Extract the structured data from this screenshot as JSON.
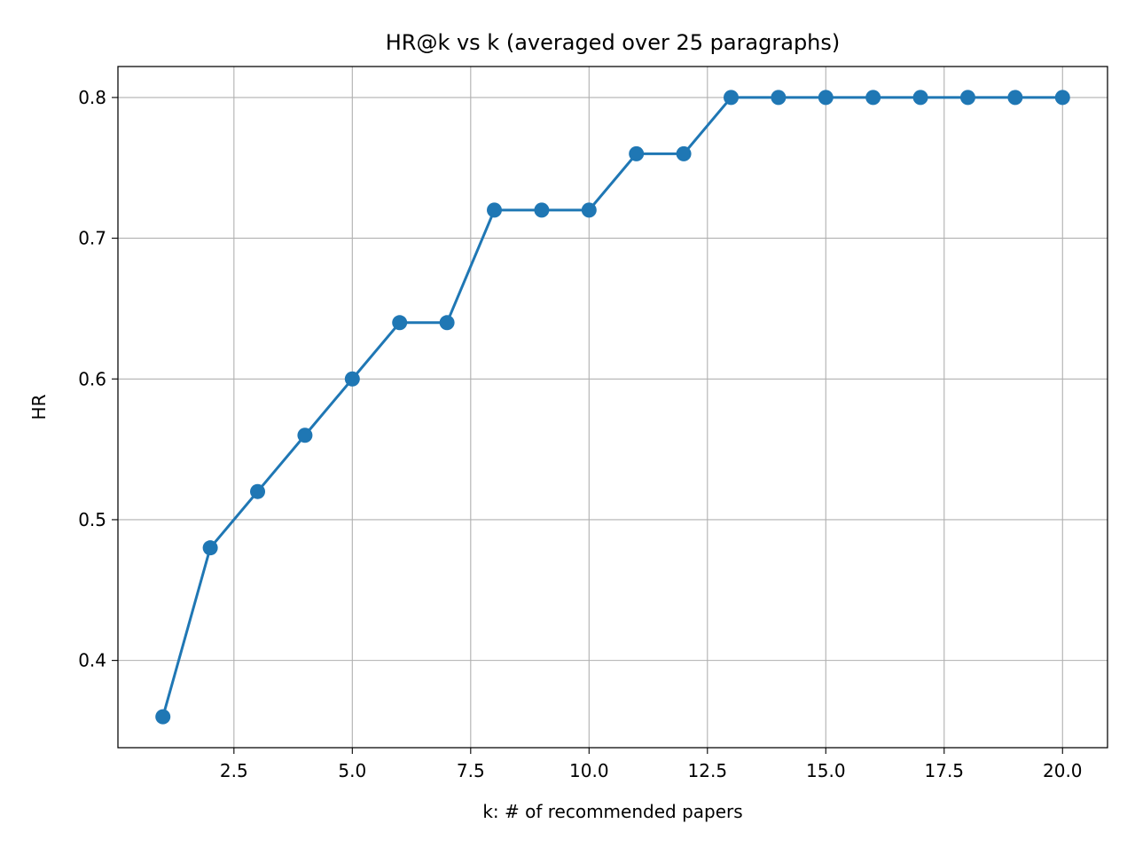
{
  "chart_data": {
    "type": "line",
    "title": "HR@k vs k  (averaged over 25 paragraphs)",
    "xlabel": "k: # of recommended papers",
    "ylabel": "HR",
    "xlim": [
      0.05,
      20.95
    ],
    "ylim": [
      0.338,
      0.822
    ],
    "xticks": [
      2.5,
      5.0,
      7.5,
      10.0,
      12.5,
      15.0,
      17.5,
      20.0
    ],
    "xtick_labels": [
      "2.5",
      "5.0",
      "7.5",
      "10.0",
      "12.5",
      "15.0",
      "17.5",
      "20.0"
    ],
    "yticks": [
      0.4,
      0.5,
      0.6,
      0.7,
      0.8
    ],
    "ytick_labels": [
      "0.4",
      "0.5",
      "0.6",
      "0.7",
      "0.8"
    ],
    "grid": true,
    "marker": "circle",
    "series": [
      {
        "color": "#1f77b4",
        "x": [
          1,
          2,
          3,
          4,
          5,
          6,
          7,
          8,
          9,
          10,
          11,
          12,
          13,
          14,
          15,
          16,
          17,
          18,
          19,
          20
        ],
        "values": [
          0.36,
          0.48,
          0.52,
          0.56,
          0.6,
          0.64,
          0.64,
          0.72,
          0.72,
          0.72,
          0.76,
          0.76,
          0.8,
          0.8,
          0.8,
          0.8,
          0.8,
          0.8,
          0.8,
          0.8
        ]
      }
    ]
  }
}
